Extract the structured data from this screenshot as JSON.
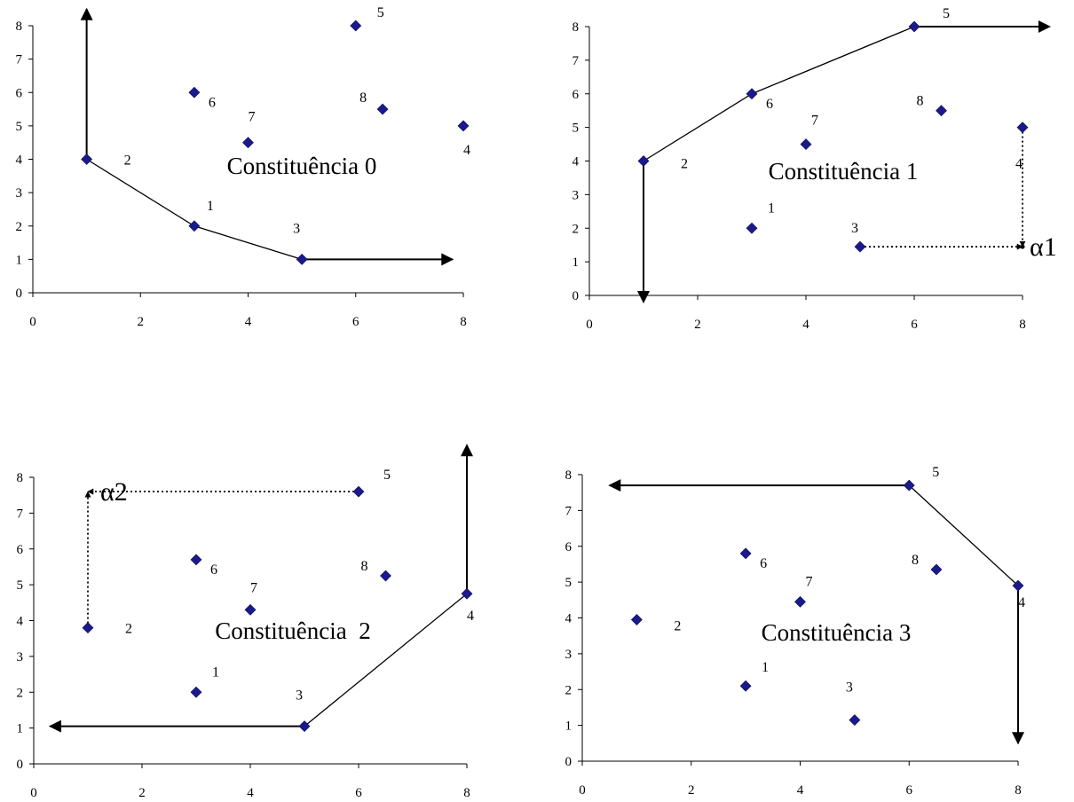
{
  "chart_data": [
    {
      "type": "scatter",
      "title": "Constituência 0",
      "xlim": [
        0,
        8
      ],
      "ylim": [
        0,
        8
      ],
      "xticks": [
        0,
        2,
        4,
        6,
        8
      ],
      "yticks": [
        0,
        1,
        2,
        3,
        4,
        5,
        6,
        7,
        8
      ],
      "points": [
        {
          "label": "1",
          "x": 3,
          "y": 2
        },
        {
          "label": "2",
          "x": 1,
          "y": 4
        },
        {
          "label": "3",
          "x": 5,
          "y": 1
        },
        {
          "label": "4",
          "x": 8,
          "y": 5
        },
        {
          "label": "5",
          "x": 6,
          "y": 8
        },
        {
          "label": "6",
          "x": 3,
          "y": 6
        },
        {
          "label": "7",
          "x": 4,
          "y": 4.5
        },
        {
          "label": "8",
          "x": 6.5,
          "y": 5.5
        }
      ],
      "frontier": [
        [
          1,
          4
        ],
        [
          3,
          2
        ],
        [
          5,
          1
        ]
      ],
      "arrows": [
        {
          "from": [
            1,
            4
          ],
          "to": [
            1,
            8.5
          ]
        },
        {
          "from": [
            5,
            1
          ],
          "to": [
            7.8,
            1
          ]
        }
      ],
      "dotted": []
    },
    {
      "type": "scatter",
      "title": "Constituência 1",
      "xlim": [
        0,
        8
      ],
      "ylim": [
        0,
        8
      ],
      "xticks": [
        0,
        2,
        4,
        6,
        8
      ],
      "yticks": [
        0,
        1,
        2,
        3,
        4,
        5,
        6,
        7,
        8
      ],
      "points": [
        {
          "label": "1",
          "x": 3,
          "y": 2
        },
        {
          "label": "2",
          "x": 1,
          "y": 4
        },
        {
          "label": "3",
          "x": 5,
          "y": 1.45
        },
        {
          "label": "4",
          "x": 8,
          "y": 5
        },
        {
          "label": "5",
          "x": 6,
          "y": 8
        },
        {
          "label": "6",
          "x": 3,
          "y": 6
        },
        {
          "label": "7",
          "x": 4,
          "y": 4.5
        },
        {
          "label": "8",
          "x": 6.5,
          "y": 5.5
        }
      ],
      "frontier": [
        [
          1,
          4
        ],
        [
          3,
          6
        ],
        [
          6,
          8
        ]
      ],
      "arrows": [
        {
          "from": [
            1,
            4
          ],
          "to": [
            1,
            -0.2
          ]
        },
        {
          "from": [
            6,
            8
          ],
          "to": [
            8.5,
            8
          ]
        }
      ],
      "dotted": [
        {
          "from": [
            8,
            5
          ],
          "to": [
            8,
            1.45
          ],
          "arrow": true
        },
        {
          "from": [
            5,
            1.45
          ],
          "to": [
            8,
            1.45
          ],
          "arrow": true
        }
      ],
      "alpha": {
        "label": "α1",
        "x": 8,
        "y": 1.45
      }
    },
    {
      "type": "scatter",
      "title": "Constituência  2",
      "xlim": [
        0,
        8
      ],
      "ylim": [
        0,
        8
      ],
      "xticks": [
        0,
        2,
        4,
        6,
        8
      ],
      "yticks": [
        0,
        1,
        2,
        3,
        4,
        5,
        6,
        7,
        8
      ],
      "points": [
        {
          "label": "1",
          "x": 3,
          "y": 2
        },
        {
          "label": "2",
          "x": 1,
          "y": 3.8
        },
        {
          "label": "3",
          "x": 5,
          "y": 1.05
        },
        {
          "label": "4",
          "x": 8,
          "y": 4.75
        },
        {
          "label": "5",
          "x": 6,
          "y": 7.6
        },
        {
          "label": "6",
          "x": 3,
          "y": 5.7
        },
        {
          "label": "7",
          "x": 4,
          "y": 4.3
        },
        {
          "label": "8",
          "x": 6.5,
          "y": 5.25
        }
      ],
      "frontier": [
        [
          5,
          1.05
        ],
        [
          8,
          4.75
        ]
      ],
      "arrows": [
        {
          "from": [
            8,
            4.75
          ],
          "to": [
            8,
            8.9
          ]
        },
        {
          "from": [
            5,
            1.05
          ],
          "to": [
            0.3,
            1.05
          ]
        }
      ],
      "dotted": [
        {
          "from": [
            6,
            7.6
          ],
          "to": [
            1,
            7.6
          ],
          "arrow": true
        },
        {
          "from": [
            1,
            3.8
          ],
          "to": [
            1,
            7.6
          ],
          "arrow": true
        }
      ],
      "alpha": {
        "label": "α2",
        "x": 1,
        "y": 7.6
      }
    },
    {
      "type": "scatter",
      "title": "Constituência 3",
      "xlim": [
        0,
        8
      ],
      "ylim": [
        0,
        8
      ],
      "xticks": [
        0,
        2,
        4,
        6,
        8
      ],
      "yticks": [
        0,
        1,
        2,
        3,
        4,
        5,
        6,
        7,
        8
      ],
      "points": [
        {
          "label": "1",
          "x": 3,
          "y": 2.1
        },
        {
          "label": "2",
          "x": 1,
          "y": 3.95
        },
        {
          "label": "3",
          "x": 5,
          "y": 1.15
        },
        {
          "label": "4",
          "x": 8,
          "y": 4.9
        },
        {
          "label": "5",
          "x": 6,
          "y": 7.7
        },
        {
          "label": "6",
          "x": 3,
          "y": 5.8
        },
        {
          "label": "7",
          "x": 4,
          "y": 4.45
        },
        {
          "label": "8",
          "x": 6.5,
          "y": 5.35
        }
      ],
      "frontier": [
        [
          6,
          7.7
        ],
        [
          8,
          4.9
        ]
      ],
      "arrows": [
        {
          "from": [
            6,
            7.7
          ],
          "to": [
            0.5,
            7.7
          ]
        },
        {
          "from": [
            8,
            4.9
          ],
          "to": [
            8,
            0.5
          ]
        }
      ],
      "dotted": []
    }
  ]
}
